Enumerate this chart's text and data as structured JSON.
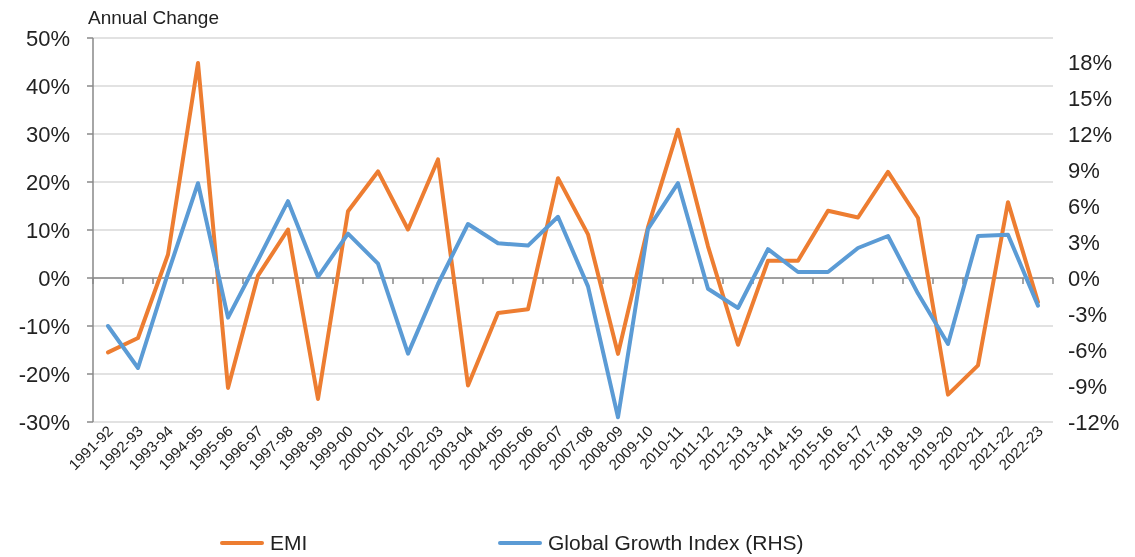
{
  "chart_data": {
    "type": "line",
    "ylabel": "Annual Change",
    "categories": [
      "1991-92",
      "1992-93",
      "1993-94",
      "1994-95",
      "1995-96",
      "1996-97",
      "1997-98",
      "1998-99",
      "1999-00",
      "2000-01",
      "2001-02",
      "2002-03",
      "2003-04",
      "2004-05",
      "2005-06",
      "2006-07",
      "2007-08",
      "2008-09",
      "2009-10",
      "2010-11",
      "2011-12",
      "2012-13",
      "2013-14",
      "2014-15",
      "2015-16",
      "2016-17",
      "2017-18",
      "2018-19",
      "2019-20",
      "2020-21",
      "2021-22",
      "2022-23"
    ],
    "series": [
      {
        "name": "EMI",
        "color": "#ed7d31",
        "values": [
          -15.5,
          -12.5,
          4.9,
          44.8,
          -22.9,
          0.5,
          10.1,
          -25.2,
          13.9,
          22.2,
          10.1,
          24.7,
          -22.4,
          -7.3,
          -6.5,
          20.8,
          9.1,
          -15.8,
          10.6,
          30.9,
          6.6,
          -13.9,
          3.6,
          3.6,
          14,
          12.6,
          22.1,
          12.5,
          -24.3,
          -18.2,
          15.8,
          -5
        ]
      },
      {
        "name": "Global Growth Index (RHS)",
        "color": "#5b9bd5",
        "axis": "y2",
        "values": [
          -4,
          -7.5,
          0.4,
          7.9,
          -3.3,
          1.5,
          6.4,
          0.1,
          3.7,
          1.2,
          -6.3,
          -0.5,
          4.5,
          2.9,
          2.7,
          5.1,
          -0.7,
          -11.6,
          4.1,
          7.9,
          -0.9,
          -2.5,
          2.4,
          0.5,
          0.5,
          2.5,
          3.5,
          -1.3,
          -5.5,
          3.5,
          3.6,
          -2.3
        ]
      }
    ],
    "ylim": [
      -30,
      50
    ],
    "yticks": [
      {
        "value": -30,
        "label": "-30%"
      },
      {
        "value": -20,
        "label": "-20%"
      },
      {
        "value": -10,
        "label": "-10%"
      },
      {
        "value": 0,
        "label": "0%"
      },
      {
        "value": 10,
        "label": "10%"
      },
      {
        "value": 20,
        "label": "20%"
      },
      {
        "value": 30,
        "label": "30%"
      },
      {
        "value": 40,
        "label": "40%"
      },
      {
        "value": 50,
        "label": "50%"
      }
    ],
    "y2lim": [
      -12,
      20
    ],
    "y2ticks": [
      {
        "value": -12,
        "label": "-12%"
      },
      {
        "value": -9,
        "label": "-9%"
      },
      {
        "value": -6,
        "label": "-6%"
      },
      {
        "value": -3,
        "label": "-3%"
      },
      {
        "value": 0,
        "label": "0%"
      },
      {
        "value": 3,
        "label": "3%"
      },
      {
        "value": 6,
        "label": "6%"
      },
      {
        "value": 9,
        "label": "9%"
      },
      {
        "value": 12,
        "label": "12%"
      },
      {
        "value": 15,
        "label": "15%"
      },
      {
        "value": 18,
        "label": "18%"
      }
    ],
    "grid": "y",
    "legend": "bottom",
    "marker": "none",
    "line_style": "solid"
  }
}
